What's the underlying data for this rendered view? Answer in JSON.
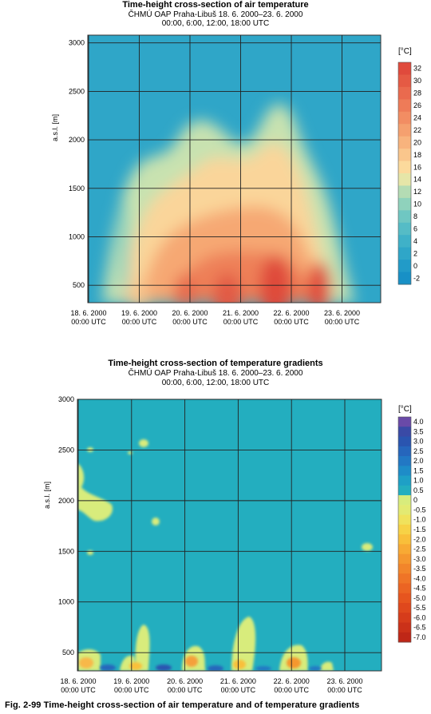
{
  "caption": "Fig. 2-99  Time-height cross-section of air temperature and of temperature gradients",
  "chart_data": [
    {
      "type": "heatmap",
      "title": "Time-height cross-section of air temperature",
      "subtitle_1": "ČHMÚ OAP Praha-Libuš   18. 6. 2000–23. 6. 2000",
      "subtitle_2": "00:00, 6:00, 12:00, 18:00 UTC",
      "ylabel": "a.s.l. [m]",
      "ylim": [
        320,
        3080
      ],
      "yticks": [
        "500",
        "1000",
        "1500",
        "2000",
        "2500",
        "3000"
      ],
      "xticks": [
        {
          "date": "18. 6. 2000",
          "time": "00:00 UTC"
        },
        {
          "date": "19. 6. 2000",
          "time": "00:00 UTC"
        },
        {
          "date": "20. 6. 2000",
          "time": "00:00 UTC"
        },
        {
          "date": "21. 6. 2000",
          "time": "00:00 UTC"
        },
        {
          "date": "22. 6. 2000",
          "time": "00:00 UTC"
        },
        {
          "date": "23. 6. 2000",
          "time": "00:00 UTC"
        }
      ],
      "colorbar_unit": "[°C]",
      "colorbar_levels": [
        "32",
        "30",
        "28",
        "26",
        "24",
        "22",
        "20",
        "18",
        "16",
        "14",
        "12",
        "10",
        "8",
        "6",
        "4",
        "2",
        "0",
        "-2"
      ],
      "colorbar_colors": [
        "#e04a3c",
        "#e55a44",
        "#ea6a4e",
        "#ee7b58",
        "#f28d63",
        "#f5a06f",
        "#f8b37d",
        "#fac68c",
        "#fcda9c",
        "#e6e6a8",
        "#b4dcb4",
        "#8fd2bc",
        "#6fc7c2",
        "#55bcc6",
        "#3fb1c8",
        "#2fa6c8",
        "#229bc8",
        "#1890c6"
      ],
      "grid": true
    },
    {
      "type": "heatmap",
      "title": "Time-height cross-section of temperature gradients",
      "subtitle_1": "ČHMÚ OAP Praha-Libuš   18. 6. 2000–23. 6. 2000",
      "subtitle_2": "00:00, 6:00, 12:00, 18:00 UTC",
      "ylabel": "a.s.l. [m]",
      "ylim": [
        320,
        3000
      ],
      "yticks": [
        "500",
        "1000",
        "1500",
        "2000",
        "2500",
        "3000"
      ],
      "xticks": [
        {
          "date": "18. 6. 2000",
          "time": "00:00 UTC"
        },
        {
          "date": "19. 6. 2000",
          "time": "00:00 UTC"
        },
        {
          "date": "20. 6. 2000",
          "time": "00:00 UTC"
        },
        {
          "date": "21. 6. 2000",
          "time": "00:00 UTC"
        },
        {
          "date": "22. 6. 2000",
          "time": "00:00 UTC"
        },
        {
          "date": "23. 6. 2000",
          "time": "00:00 UTC"
        }
      ],
      "colorbar_unit": "[°C]",
      "colorbar_levels": [
        "4.0",
        "3.5",
        "3.0",
        "2.5",
        "2.0",
        "1.5",
        "1.0",
        "0.5",
        "0",
        "-0.5",
        "-1.0",
        "-1.5",
        "-2.0",
        "-2.5",
        "-3.0",
        "-3.5",
        "-4.0",
        "-4.5",
        "-5.0",
        "-5.5",
        "-6.0",
        "-6.5",
        "-7.0"
      ],
      "colorbar_colors": [
        "#6a4aa8",
        "#3a4aa6",
        "#2a55b0",
        "#2666bc",
        "#2278c4",
        "#1e8cc8",
        "#1ea0c6",
        "#23aebf",
        "#d8ec7c",
        "#e3ea72",
        "#f0e25c",
        "#f7d246",
        "#f9bf3a",
        "#f8aa34",
        "#f5972f",
        "#f2852b",
        "#ef7427",
        "#eb6423",
        "#e6551f",
        "#df481d",
        "#d63c1b",
        "#cb3119",
        "#bf2717"
      ],
      "grid": true
    }
  ]
}
